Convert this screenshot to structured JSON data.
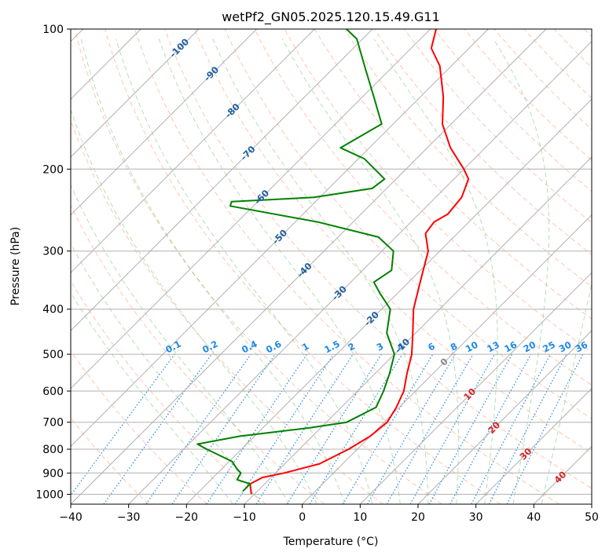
{
  "chart_data": {
    "type": "line",
    "title": "wetPf2_GN05.2025.120.15.49.G11",
    "xlabel": "Temperature (°C)",
    "ylabel": "Pressure (hPa)",
    "xlim": [
      -40,
      50
    ],
    "ylim": [
      1050,
      100
    ],
    "yscale": "log",
    "x_ticks": [
      -40,
      -30,
      -20,
      -10,
      0,
      10,
      20,
      30,
      40,
      50
    ],
    "y_ticks": [
      1000,
      900,
      800,
      700,
      600,
      500,
      400,
      300,
      200,
      100
    ],
    "grid": true,
    "skew": "skew-T log-p diagram",
    "series": [
      {
        "color": "#ff0000",
        "points": [
          [
            -10.5,
            1000
          ],
          [
            -12.5,
            950
          ],
          [
            -11.5,
            920
          ],
          [
            -8.5,
            900
          ],
          [
            -4.0,
            860
          ],
          [
            -1.5,
            800
          ],
          [
            0.0,
            750
          ],
          [
            0.5,
            700
          ],
          [
            -0.5,
            650
          ],
          [
            -2.0,
            600
          ],
          [
            -4.5,
            550
          ],
          [
            -7.0,
            500
          ],
          [
            -10.5,
            450
          ],
          [
            -14.5,
            400
          ],
          [
            -18.0,
            350
          ],
          [
            -22.0,
            300
          ],
          [
            -25.5,
            275
          ],
          [
            -26.0,
            260
          ],
          [
            -25.0,
            250
          ],
          [
            -25.5,
            230
          ],
          [
            -27.5,
            210
          ],
          [
            -30.0,
            200
          ],
          [
            -36.0,
            180
          ],
          [
            -41.5,
            160
          ],
          [
            -46.0,
            140
          ],
          [
            -52.0,
            120
          ],
          [
            -56.5,
            110
          ],
          [
            -59.0,
            100
          ]
        ]
      },
      {
        "color": "#008000",
        "points": [
          [
            -12.5,
            985
          ],
          [
            -12.5,
            950
          ],
          [
            -15.5,
            930
          ],
          [
            -16.0,
            900
          ],
          [
            -17.5,
            880
          ],
          [
            -19.5,
            850
          ],
          [
            -26.0,
            800
          ],
          [
            -28.5,
            780
          ],
          [
            -22.5,
            750
          ],
          [
            -12.0,
            720
          ],
          [
            -6.5,
            700
          ],
          [
            -4.0,
            650
          ],
          [
            -5.5,
            600
          ],
          [
            -7.5,
            550
          ],
          [
            -10.0,
            500
          ],
          [
            -15.0,
            450
          ],
          [
            -18.5,
            400
          ],
          [
            -23.0,
            370
          ],
          [
            -26.0,
            350
          ],
          [
            -25.0,
            330
          ],
          [
            -28.0,
            300
          ],
          [
            -33.0,
            280
          ],
          [
            -46.0,
            260
          ],
          [
            -64.0,
            240
          ],
          [
            -64.5,
            235
          ],
          [
            -51.0,
            230
          ],
          [
            -42.5,
            220
          ],
          [
            -42.0,
            210
          ],
          [
            -49.0,
            190
          ],
          [
            -55.0,
            180
          ],
          [
            -52.0,
            160
          ],
          [
            -58.0,
            140
          ],
          [
            -65.0,
            120
          ],
          [
            -71.0,
            105
          ],
          [
            -74.5,
            100
          ]
        ]
      }
    ],
    "dry_adiabats_celsius": [
      -30,
      -20,
      -10,
      0,
      10,
      20,
      30,
      40,
      50,
      60,
      70,
      80,
      90,
      100,
      110,
      120,
      130,
      140,
      150,
      160,
      170,
      180,
      190,
      200
    ],
    "isotherms_celsius": [
      -120,
      -110,
      -100,
      -90,
      -80,
      -70,
      -60,
      -50,
      -40,
      -30,
      -20,
      -10,
      0,
      10,
      20,
      30,
      40,
      50
    ],
    "moist_adiabats_celsius": [
      -15,
      -10,
      -5,
      0,
      5,
      10,
      15,
      20,
      25,
      30,
      35,
      40
    ],
    "mixing_ratios": [
      "0.1",
      "0.2",
      "0.4",
      "0.6",
      "1",
      "1.5",
      "2",
      "3",
      "4",
      "6",
      "8",
      "10",
      "13",
      "16",
      "20",
      "25",
      "30",
      "36"
    ],
    "isotherm_labels": [
      {
        "text": "-100",
        "value": -100
      },
      {
        "text": "-90",
        "value": -90
      },
      {
        "text": "-80",
        "value": -80
      },
      {
        "text": "-70",
        "value": -70
      },
      {
        "text": "-60",
        "value": -60
      },
      {
        "text": "-50",
        "value": -50
      },
      {
        "text": "-40",
        "value": -40
      },
      {
        "text": "-30",
        "value": -30
      },
      {
        "text": "-20",
        "value": -20
      },
      {
        "text": "-10",
        "value": -10
      },
      {
        "text": "0",
        "value": 0
      },
      {
        "text": "10",
        "value": 10
      },
      {
        "text": "20",
        "value": 20
      },
      {
        "text": "30",
        "value": 30
      },
      {
        "text": "40",
        "value": 40
      }
    ],
    "colors": {
      "isotherm_label_cold": "#1f5f9f",
      "isotherm_label_zero": "#888888",
      "isotherm_label_warm": "#d62728",
      "mixing_ratio": "#1e88e5",
      "dry_adiabat": "#ff7f50",
      "moist_adiabat": "#2ca02c",
      "grid": "#b0b0b0"
    }
  }
}
